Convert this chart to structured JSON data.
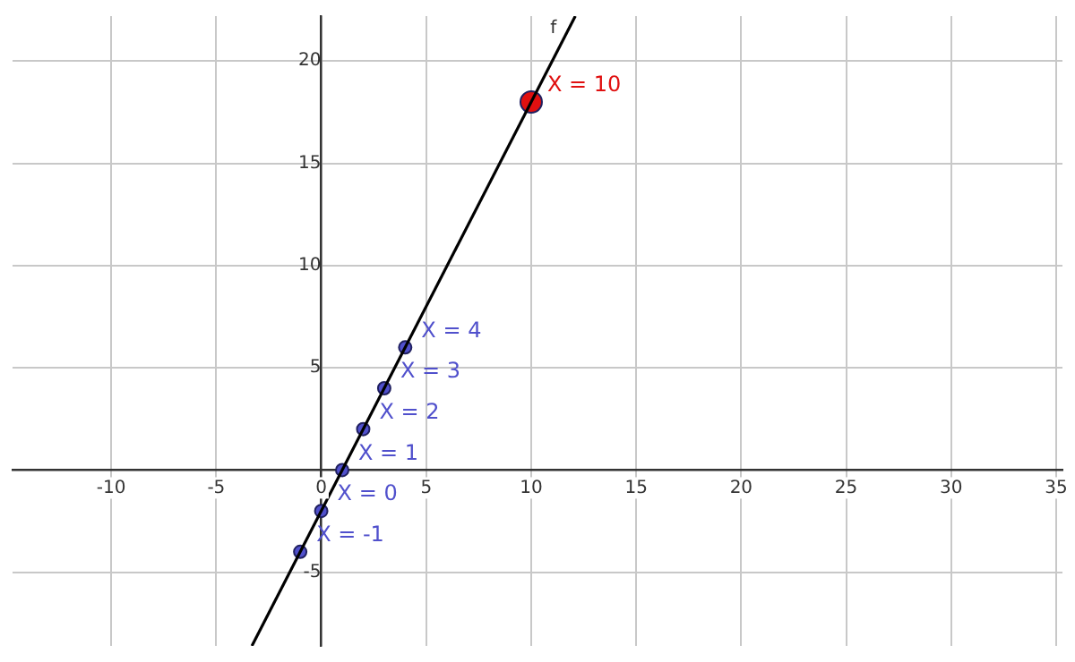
{
  "chart_data": {
    "type": "scatter",
    "xlim": [
      -14.7,
      35.3
    ],
    "ylim": [
      -8.6,
      22.2
    ],
    "xticks": [
      -10,
      -5,
      0,
      5,
      10,
      15,
      20,
      25,
      30,
      35
    ],
    "yticks": [
      -5,
      5,
      10,
      15,
      20
    ],
    "grid": true,
    "legend": false,
    "marker": "circle",
    "series": [
      {
        "name": "f",
        "type": "line",
        "marker": "none",
        "color": "#000000",
        "x": [
          -3.3,
          12.1
        ],
        "values": [
          -8.6,
          22.2
        ]
      },
      {
        "color": "#5050cc",
        "x": [
          -1,
          0,
          1,
          2,
          3,
          4
        ],
        "values": [
          -4,
          -2,
          0,
          2,
          4,
          6
        ]
      },
      {
        "color": "#e01010",
        "x": [
          10
        ],
        "values": [
          18
        ]
      }
    ],
    "annotations": [
      {
        "text": "X = -1",
        "x": -1,
        "y": -4
      },
      {
        "text": "X = 0",
        "x": 0,
        "y": -2
      },
      {
        "text": "X = 1",
        "x": 1,
        "y": 0
      },
      {
        "text": "X = 2",
        "x": 2,
        "y": 2
      },
      {
        "text": "X = 3",
        "x": 3,
        "y": 4
      },
      {
        "text": "X = 4",
        "x": 4,
        "y": 6
      },
      {
        "text": "X = 10",
        "x": 10,
        "y": 18
      }
    ]
  }
}
